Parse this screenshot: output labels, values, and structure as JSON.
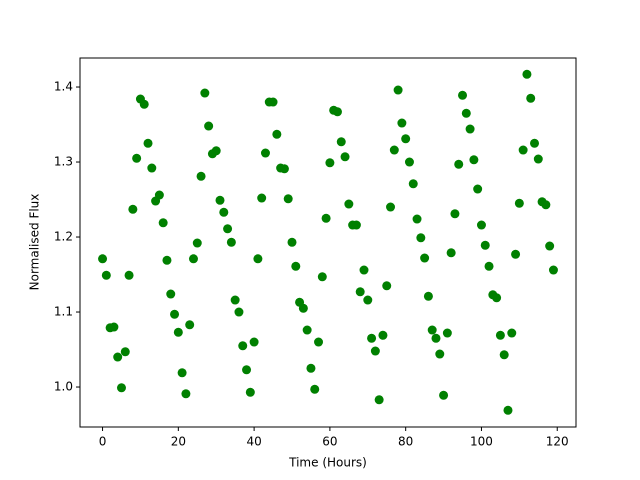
{
  "chart_data": {
    "type": "scatter",
    "x_label": "Time (Hours)",
    "y_label": "Normalised Flux",
    "color": "green",
    "x": [
      0,
      1,
      2,
      3,
      4,
      5,
      6,
      7,
      8,
      9,
      10,
      11,
      12,
      13,
      14,
      15,
      16,
      17,
      18,
      19,
      20,
      21,
      22,
      23,
      24,
      25,
      26,
      27,
      28,
      29,
      30,
      31,
      32,
      33,
      34,
      35,
      36,
      37,
      38,
      39,
      40,
      41,
      42,
      43,
      44,
      45,
      46,
      47,
      48,
      49,
      50,
      51,
      52,
      53,
      54,
      55,
      56,
      57,
      58,
      59,
      60,
      61,
      62,
      63,
      64,
      65,
      66,
      67,
      68,
      69,
      70,
      71,
      72,
      73,
      74,
      75,
      76,
      77,
      78,
      79,
      80,
      81,
      82,
      83,
      84,
      85,
      86,
      87,
      88,
      89,
      90,
      91,
      92,
      93,
      94,
      95,
      96,
      97,
      98,
      99,
      100,
      101,
      102,
      103,
      104,
      105,
      106,
      107,
      108,
      109,
      110,
      111,
      112,
      113,
      114,
      115,
      116,
      117,
      118,
      119
    ],
    "values": [
      1.171,
      1.149,
      1.079,
      1.08,
      1.04,
      0.999,
      1.047,
      1.149,
      1.237,
      1.305,
      1.384,
      1.377,
      1.325,
      1.292,
      1.248,
      1.256,
      1.219,
      1.169,
      1.124,
      1.097,
      1.073,
      1.019,
      0.991,
      1.083,
      1.171,
      1.192,
      1.281,
      1.392,
      1.348,
      1.311,
      1.315,
      1.249,
      1.233,
      1.211,
      1.193,
      1.116,
      1.1,
      1.055,
      1.023,
      0.993,
      1.06,
      1.171,
      1.252,
      1.312,
      1.38,
      1.38,
      1.337,
      1.292,
      1.291,
      1.251,
      1.193,
      1.161,
      1.113,
      1.105,
      1.076,
      1.025,
      0.997,
      1.06,
      1.147,
      1.225,
      1.299,
      1.369,
      1.367,
      1.327,
      1.307,
      1.244,
      1.216,
      1.216,
      1.127,
      1.156,
      1.116,
      1.065,
      1.048,
      0.983,
      1.069,
      1.135,
      1.24,
      1.316,
      1.396,
      1.352,
      1.331,
      1.3,
      1.271,
      1.224,
      1.199,
      1.172,
      1.121,
      1.076,
      1.065,
      1.044,
      0.989,
      1.072,
      1.179,
      1.231,
      1.297,
      1.389,
      1.365,
      1.344,
      1.303,
      1.264,
      1.216,
      1.189,
      1.161,
      1.123,
      1.119,
      1.069,
      1.043,
      0.969,
      1.072,
      1.177,
      1.245,
      1.316,
      1.417,
      1.385,
      1.325,
      1.304,
      1.247,
      1.243,
      1.188,
      1.156
    ],
    "xlim": [
      -5.95,
      124.95
    ],
    "xticks": [
      0,
      20,
      40,
      60,
      80,
      100,
      120
    ],
    "ylim": [
      0.9467,
      1.4387
    ],
    "yticks": [
      {
        "value": 1,
        "label": "1.0"
      },
      1.1,
      1.2,
      1.3,
      1.4
    ]
  }
}
